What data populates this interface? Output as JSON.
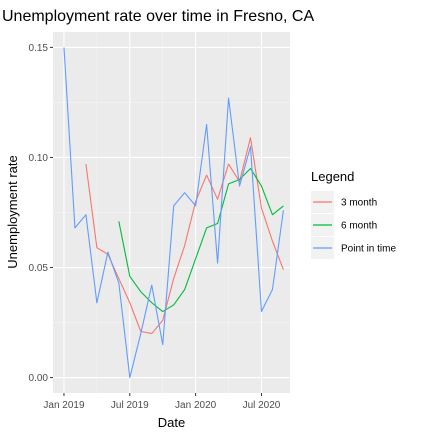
{
  "chart_data": {
    "type": "line",
    "title": "Unemployment rate over time in Fresno, CA",
    "xlabel": "Date",
    "ylabel": "Unemployment rate",
    "x_start": "2019-01",
    "x_ticks": [
      {
        "label": "Jan 2019",
        "month": 0
      },
      {
        "label": "Jul 2019",
        "month": 6
      },
      {
        "label": "Jan 2020",
        "month": 12
      },
      {
        "label": "Jul 2020",
        "month": 18
      }
    ],
    "xlim_months": [
      -1.0,
      20.6
    ],
    "y_ticks": [
      {
        "label": "0.00",
        "value": 0.0
      },
      {
        "label": "0.05",
        "value": 0.05
      },
      {
        "label": "0.10",
        "value": 0.1
      },
      {
        "label": "0.15",
        "value": 0.15
      }
    ],
    "ylim": [
      -0.007,
      0.157
    ],
    "grid": true,
    "legend": {
      "title": "Legend",
      "position": "right"
    },
    "series": [
      {
        "name": "3 month",
        "color": "#F8766D",
        "x": [
          2,
          3,
          4,
          5,
          6,
          7,
          8,
          9,
          10,
          11,
          12,
          13,
          14,
          15,
          16,
          17,
          18,
          19,
          20
        ],
        "y": [
          0.097,
          0.059,
          0.056,
          0.045,
          0.034,
          0.021,
          0.02,
          0.026,
          0.045,
          0.06,
          0.08,
          0.092,
          0.081,
          0.097,
          0.089,
          0.109,
          0.077,
          0.062,
          0.049
        ]
      },
      {
        "name": "6 month",
        "color": "#00BA38",
        "x": [
          5,
          6,
          7,
          8,
          9,
          10,
          11,
          12,
          13,
          14,
          15,
          16,
          17,
          18,
          19,
          20
        ],
        "y": [
          0.071,
          0.046,
          0.039,
          0.034,
          0.03,
          0.033,
          0.04,
          0.054,
          0.068,
          0.07,
          0.088,
          0.09,
          0.095,
          0.087,
          0.074,
          0.078
        ]
      },
      {
        "name": "Point in time",
        "color": "#619CFF",
        "x": [
          0,
          1,
          2,
          3,
          4,
          5,
          6,
          7,
          8,
          9,
          10,
          11,
          12,
          13,
          14,
          15,
          16,
          17,
          18,
          19,
          20
        ],
        "y": [
          0.15,
          0.068,
          0.074,
          0.034,
          0.057,
          0.043,
          0.0,
          0.02,
          0.042,
          0.015,
          0.078,
          0.084,
          0.078,
          0.115,
          0.052,
          0.127,
          0.087,
          0.105,
          0.03,
          0.04,
          0.076
        ]
      }
    ]
  }
}
